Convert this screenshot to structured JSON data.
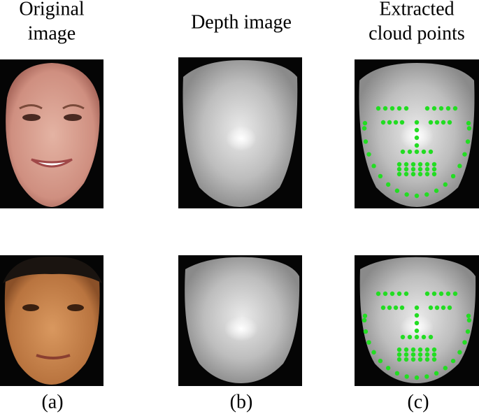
{
  "columns": [
    {
      "header": [
        "Original",
        "image"
      ],
      "label": "(a)"
    },
    {
      "header": [
        "Depth image"
      ],
      "label": "(b)"
    },
    {
      "header": [
        "Extracted",
        "cloud points"
      ],
      "label": "(c)"
    }
  ]
}
